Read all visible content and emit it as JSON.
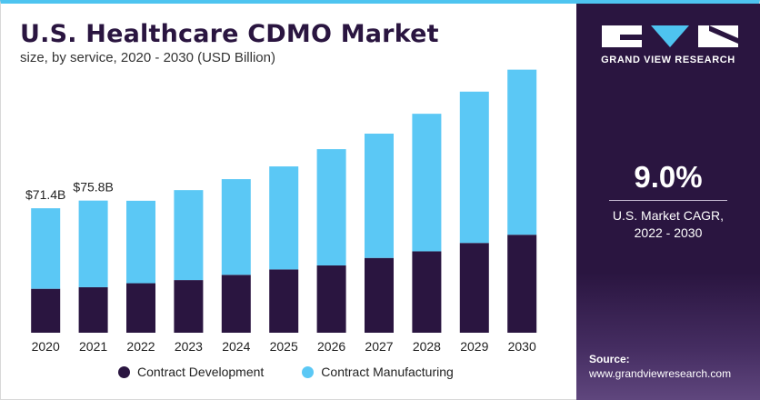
{
  "header": {
    "title": "U.S. Healthcare CDMO Market",
    "subtitle": "size, by service, 2020 - 2030 (USD Billion)"
  },
  "chart_data": {
    "type": "bar",
    "stacked": true,
    "title": "U.S. Healthcare CDMO Market",
    "subtitle": "size, by service, 2020 - 2030 (USD Billion)",
    "xlabel": "",
    "ylabel": "",
    "grid": false,
    "ylim": [
      0,
      170
    ],
    "categories": [
      "2020",
      "2021",
      "2022",
      "2023",
      "2024",
      "2025",
      "2026",
      "2027",
      "2028",
      "2029",
      "2030"
    ],
    "series": [
      {
        "name": "Contract Development",
        "color": "#2a1540",
        "values": [
          25.2,
          26.1,
          28.4,
          30.2,
          33.2,
          36.3,
          38.6,
          42.9,
          46.7,
          51.5,
          56.2
        ]
      },
      {
        "name": "Contract Manufacturing",
        "color": "#5bc8f5",
        "values": [
          46.2,
          49.7,
          47.3,
          51.6,
          54.9,
          59.1,
          66.7,
          71.3,
          78.9,
          86.8,
          94.7
        ]
      }
    ],
    "data_labels": [
      {
        "category": "2020",
        "text": "$71.4B"
      },
      {
        "category": "2021",
        "text": "$75.8B"
      }
    ],
    "legend_position": "bottom"
  },
  "panel": {
    "brand": "GRAND VIEW RESEARCH",
    "cagr_value": "9.0%",
    "cagr_label_line1": "U.S. Market CAGR,",
    "cagr_label_line2": "2022 - 2030",
    "source_label": "Source:",
    "source_url": "www.grandviewresearch.com",
    "background_color": "#2a1540"
  },
  "icons": {
    "logo": "grand-view-research-logo"
  }
}
